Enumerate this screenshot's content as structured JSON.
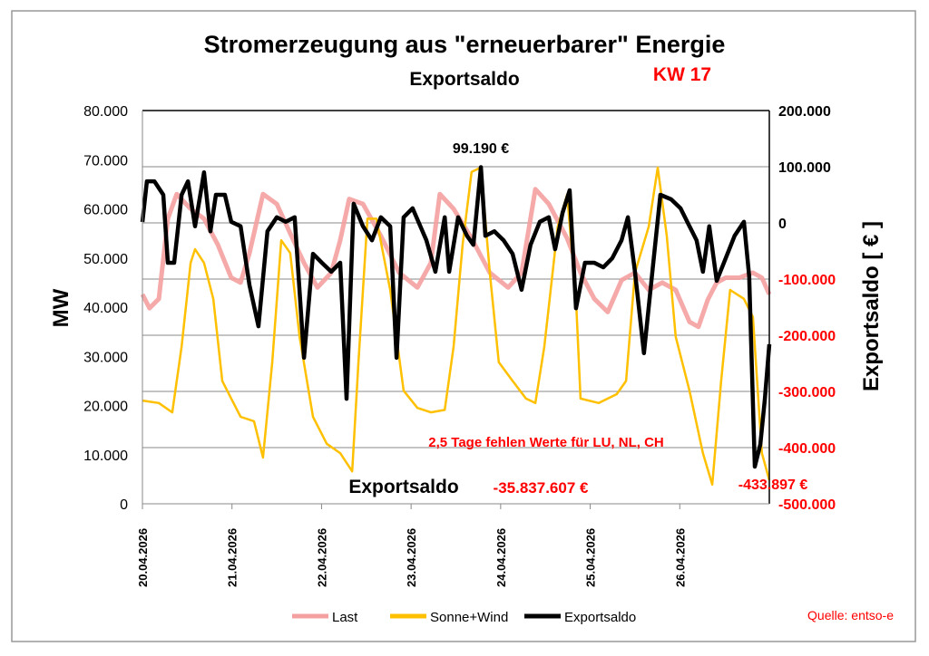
{
  "chart_data": {
    "type": "line",
    "title": "Stromerzeugung aus \"erneuerbarer\" Energie",
    "subtitle": "Exportsaldo",
    "week_label": "KW 17",
    "ylabel": "MW",
    "y2label": "Exportsaldo [ € ]",
    "ylim": [
      0,
      80000
    ],
    "y2lim": [
      -500000,
      200000
    ],
    "xlim_hours": [
      0,
      168
    ],
    "grid": true,
    "legend_position": "bottom",
    "yticks": [
      "0",
      "10.000",
      "20.000",
      "30.000",
      "40.000",
      "50.000",
      "60.000",
      "70.000",
      "80.000"
    ],
    "y2ticks": [
      "-500.000",
      "-400.000",
      "-300.000",
      "-200.000",
      "-100.000",
      "0",
      "100.000",
      "200.000"
    ],
    "xticks": [
      "20.04.2026",
      "21.04.2026",
      "22.04.2026",
      "23.04.2026",
      "24.04.2026",
      "25.04.2026",
      "26.04.2026"
    ],
    "annotations": {
      "max": "99.190 €",
      "missing": "2,5 Tage fehlen Werte für LU, NL, CH",
      "total_label": "Exportsaldo",
      "total_value": "-35.837.607 €",
      "min": "-433.897 €"
    },
    "source": "Quelle: entso-e",
    "series": [
      {
        "name": "Last",
        "axis": "left",
        "color": "#f4a0a0",
        "x": [
          0,
          1.9,
          4.4,
          6.8,
          9.2,
          12.9,
          16.5,
          20.2,
          23.8,
          26.3,
          28.7,
          32.3,
          36,
          39.6,
          43.3,
          46.9,
          50.6,
          53,
          55.4,
          59.1,
          63.9,
          68.8,
          73.7,
          77.3,
          79.7,
          83.4,
          88.2,
          93.1,
          98,
          101.6,
          105.3,
          108.9,
          113.8,
          117.4,
          121.1,
          124.7,
          128.4,
          132,
          135.7,
          139.3,
          142.9,
          146.6,
          149,
          151.5,
          153.9,
          156.3,
          160,
          163.6,
          166,
          168
        ],
        "values": [
          42600,
          39800,
          41700,
          58000,
          63000,
          60000,
          58000,
          52700,
          46000,
          45000,
          51000,
          63000,
          61000,
          55000,
          49000,
          44000,
          47000,
          53600,
          62000,
          61000,
          54500,
          47000,
          44000,
          49000,
          63000,
          60000,
          54000,
          47000,
          44000,
          47000,
          64000,
          61000,
          54000,
          47000,
          41700,
          39000,
          45500,
          47000,
          43500,
          45000,
          43500,
          37000,
          36000,
          41500,
          45000,
          46000,
          46000,
          47000,
          46000,
          42600
        ]
      },
      {
        "name": "Sonne+Wind",
        "axis": "left",
        "color": "#ffc000",
        "x": [
          0,
          4.4,
          8,
          10.5,
          12.9,
          14.1,
          16.5,
          19,
          21.4,
          23.8,
          26.3,
          29.9,
          32.3,
          34.8,
          37.2,
          39.6,
          42.1,
          45.7,
          49.4,
          53,
          56.2,
          57.9,
          60.3,
          62.7,
          66.4,
          70,
          73.7,
          77.3,
          81,
          83.4,
          85.8,
          88.2,
          90.7,
          93.1,
          95.5,
          99.2,
          102.8,
          105.3,
          107.7,
          111.3,
          113.8,
          116.2,
          117.4,
          122.3,
          127.1,
          129.6,
          132,
          135.7,
          138.1,
          140.5,
          142.9,
          146.6,
          150.2,
          152.7,
          155.1,
          157.5,
          161.2,
          163.6,
          166,
          168
        ],
        "values": [
          21000,
          20500,
          18600,
          32000,
          49000,
          51800,
          49000,
          41700,
          25000,
          21400,
          17700,
          16800,
          9400,
          28800,
          53600,
          51000,
          34000,
          17700,
          12200,
          10300,
          6600,
          28800,
          58000,
          58000,
          43500,
          23000,
          19500,
          18600,
          19100,
          32000,
          52700,
          67500,
          68400,
          47000,
          28800,
          25000,
          21400,
          20500,
          32000,
          56400,
          62900,
          41700,
          21400,
          20500,
          22300,
          25000,
          47000,
          56400,
          68400,
          54600,
          34000,
          23000,
          10300,
          3900,
          25000,
          43500,
          41700,
          38000,
          10300,
          4800
        ]
      },
      {
        "name": "Exportsaldo",
        "axis": "right",
        "color": "#000000",
        "x": [
          0,
          1.2,
          3.2,
          5.6,
          6.8,
          8.5,
          10.5,
          12.2,
          14.1,
          16.5,
          18.2,
          19.7,
          22.1,
          23.8,
          26.3,
          28.7,
          31.1,
          33.5,
          36,
          38.4,
          40.8,
          43.3,
          45.7,
          48.1,
          50.6,
          53,
          54.7,
          56.6,
          59.1,
          61.5,
          63.9,
          66.4,
          68.1,
          70,
          72.4,
          76.1,
          78.5,
          81,
          82.2,
          84.6,
          87,
          88.7,
          90.7,
          91.9,
          94.3,
          96.8,
          99.2,
          101.6,
          104,
          106.5,
          108.9,
          110.6,
          112.6,
          114.5,
          116.2,
          118.6,
          121.1,
          123.5,
          125.9,
          128.4,
          130.1,
          132,
          134.4,
          136.9,
          138.8,
          141.7,
          144.2,
          146.6,
          148.5,
          150.2,
          151.9,
          153.9,
          156.3,
          158.7,
          161.2,
          162.6,
          164.1,
          165.6,
          166.8,
          168
        ],
        "values": [
          1600,
          74000,
          74000,
          50000,
          -71000,
          -71000,
          50000,
          74000,
          -6000,
          90000,
          -15000,
          50000,
          50000,
          2000,
          -6000,
          -111000,
          -184000,
          -15000,
          10000,
          2000,
          10000,
          -240000,
          -55000,
          -71000,
          -87000,
          -71000,
          -313000,
          34000,
          -6000,
          -31000,
          10000,
          -6000,
          -240000,
          10000,
          26000,
          -31000,
          -87000,
          10000,
          -87000,
          10000,
          -23000,
          -39000,
          99190,
          -23000,
          -15000,
          -31000,
          -55000,
          -119000,
          -39000,
          2000,
          10000,
          -47000,
          18000,
          58000,
          -152000,
          -71000,
          -71000,
          -79000,
          -63000,
          -31000,
          10000,
          -87000,
          -232000,
          -71000,
          50000,
          42000,
          26000,
          -6000,
          -31000,
          -87000,
          -6000,
          -103000,
          -63000,
          -23000,
          2000,
          -95000,
          -433897,
          -394000,
          -313000,
          -216000
        ]
      }
    ]
  }
}
